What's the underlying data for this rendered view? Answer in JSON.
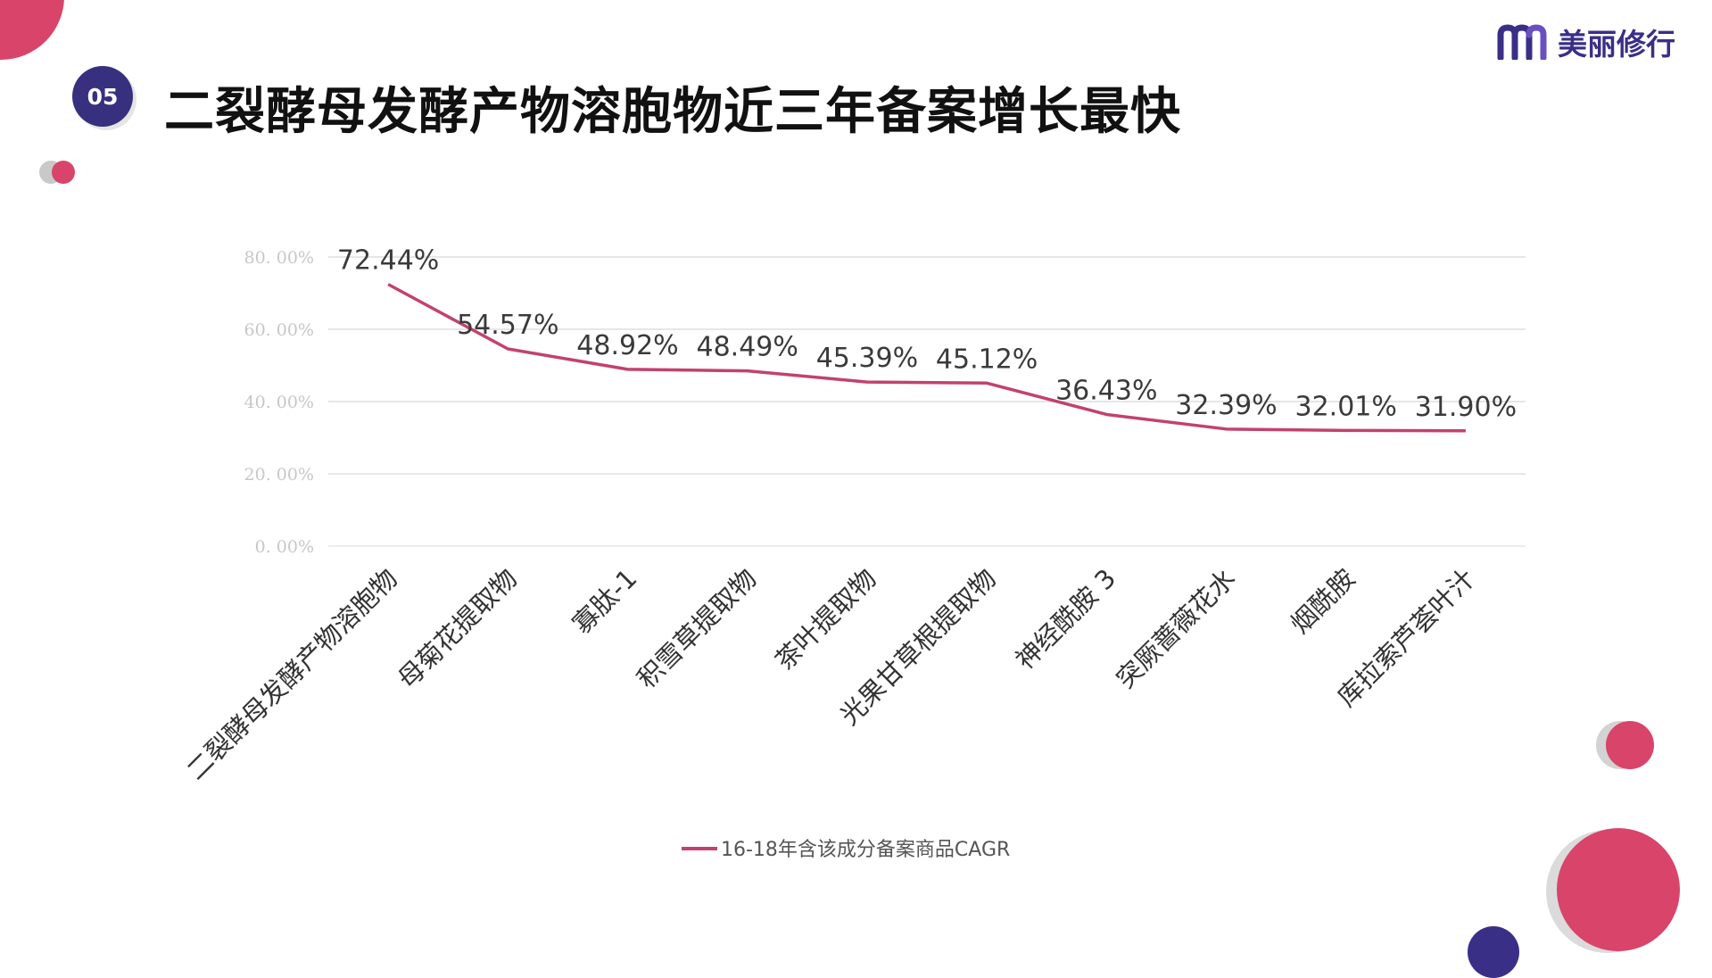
{
  "slide": {
    "number": "05",
    "title": "二裂酵母发酵产物溶胞物近三年备案增长最快"
  },
  "brand": {
    "name": "美丽修行",
    "logo_icon": "m-letter-logo-icon",
    "color": "#3a2f86"
  },
  "colors": {
    "accent_pink": "#d9446a",
    "accent_purple": "#37307e",
    "series_line": "#c2426d"
  },
  "chart_data": {
    "type": "line",
    "categories": [
      "二裂酵母发酵产物溶胞物",
      "母菊花提取物",
      "寡肽-1",
      "积雪草提取物",
      "茶叶提取物",
      "光果甘草根提取物",
      "神经酰胺 3",
      "突厥蔷薇花水",
      "烟酰胺",
      "库拉索芦荟叶汁"
    ],
    "series": [
      {
        "name": "16-18年含该成分备案商品CAGR",
        "values": [
          72.44,
          54.57,
          48.92,
          48.49,
          45.39,
          45.12,
          36.43,
          32.39,
          32.01,
          31.9
        ],
        "data_labels": [
          "72.44%",
          "54.57%",
          "48.92%",
          "48.49%",
          "45.39%",
          "45.12%",
          "36.43%",
          "32.39%",
          "32.01%",
          "31.90%"
        ]
      }
    ],
    "y_ticks": [
      0,
      20,
      40,
      60,
      80
    ],
    "y_tick_labels": [
      "0. 00%",
      "20. 00%",
      "40. 00%",
      "60. 00%",
      "80. 00%"
    ],
    "ylim": [
      0,
      80
    ],
    "grid": true,
    "legend_position": "bottom"
  }
}
